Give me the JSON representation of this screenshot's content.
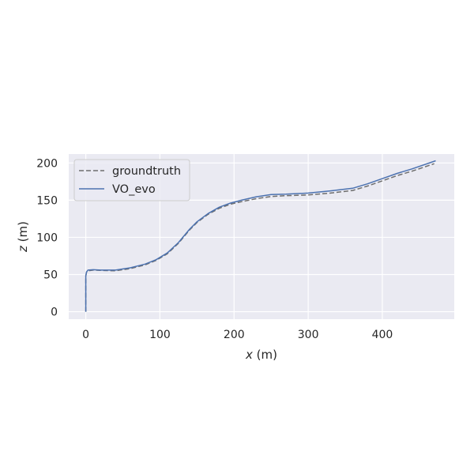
{
  "chart_data": {
    "type": "line",
    "xlabel_var": "x",
    "xlabel_unit": " (m)",
    "ylabel_var": "z",
    "ylabel_unit": " (m)",
    "xlim": [
      -23,
      497
    ],
    "ylim": [
      -10,
      212
    ],
    "xticks": [
      0,
      100,
      200,
      300,
      400
    ],
    "yticks": [
      0,
      50,
      100,
      150,
      200
    ],
    "xtick_labels": [
      "0",
      "100",
      "200",
      "300",
      "400"
    ],
    "ytick_labels": [
      "0",
      "50",
      "100",
      "150",
      "200"
    ],
    "grid": true,
    "legend_position": "upper-left",
    "background_color": "#eaeaf2",
    "series": [
      {
        "name": "groundtruth",
        "color": "#6e6e6e",
        "style": "dashed",
        "x": [
          0,
          0,
          0,
          1,
          3,
          10,
          20,
          40,
          60,
          80,
          95,
          110,
          125,
          140,
          150,
          165,
          180,
          195,
          210,
          230,
          250,
          270,
          300,
          330,
          360,
          380,
          400,
          420,
          440,
          470
        ],
        "y": [
          0,
          25,
          48,
          53,
          55,
          56,
          55.5,
          55,
          58,
          63,
          69,
          78,
          92,
          110,
          120,
          131,
          139,
          144.5,
          148,
          152,
          155,
          156,
          157,
          159.5,
          163,
          169,
          176,
          183,
          189,
          199
        ]
      },
      {
        "name": "VO_evo",
        "color": "#4c72b0",
        "style": "solid",
        "x": [
          0,
          0,
          0,
          1,
          3,
          10,
          20,
          40,
          60,
          80,
          95,
          110,
          125,
          140,
          150,
          165,
          180,
          195,
          210,
          230,
          250,
          270,
          300,
          330,
          360,
          380,
          400,
          420,
          440,
          472
        ],
        "y": [
          0,
          25,
          48,
          53.5,
          56,
          56.5,
          56,
          56,
          59,
          64,
          70,
          79,
          93,
          111,
          121,
          132,
          140.5,
          146,
          150,
          154.5,
          157.5,
          158,
          159.5,
          162.5,
          166,
          172,
          179,
          186,
          192,
          203
        ]
      }
    ]
  }
}
